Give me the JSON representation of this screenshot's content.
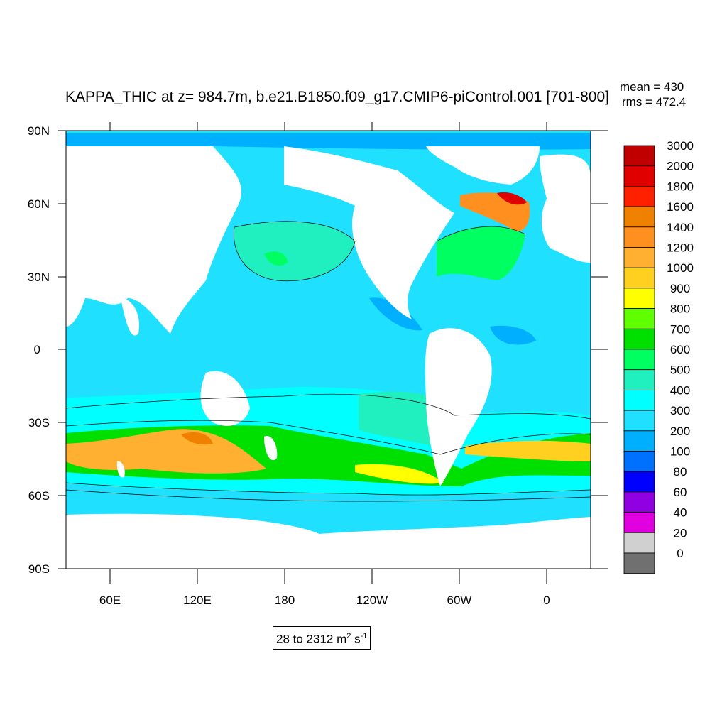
{
  "title": "KAPPA_THIC at z= 984.7m, b.e21.B1850.f09_g17.CMIP6-piControl.001 [701-800]",
  "stats": {
    "mean": "mean = 430",
    "rms": "rms = 472.4"
  },
  "range_label": {
    "text": "28 to 2312 m",
    "sup1": "2",
    "mid": " s",
    "sup2": "-1"
  },
  "lat_labels": [
    "90N",
    "60N",
    "30N",
    "0",
    "30S",
    "60S",
    "90S"
  ],
  "lon_labels": [
    "60E",
    "120E",
    "180",
    "120W",
    "60W",
    "0"
  ],
  "colorbar": {
    "levels": [
      "3000",
      "2000",
      "1800",
      "1600",
      "1400",
      "1200",
      "1000",
      "900",
      "800",
      "700",
      "600",
      "500",
      "400",
      "300",
      "200",
      "100",
      "80",
      "60",
      "40",
      "20",
      "0"
    ],
    "colors": [
      "#c00000",
      "#e00000",
      "#ff2000",
      "#f08000",
      "#ff9020",
      "#ffb030",
      "#ffd020",
      "#ffff00",
      "#60ff00",
      "#00e000",
      "#00ff60",
      "#20f0c0",
      "#00ffff",
      "#20e0ff",
      "#00b0ff",
      "#0070ff",
      "#0000ff",
      "#9000e0",
      "#e000e0",
      "#d0d0d0",
      "#707070"
    ]
  },
  "chart_data": {
    "type": "map",
    "variable": "KAPPA_THIC",
    "units": "m^2 s^-1",
    "depth_m": 984.7,
    "case": "b.e21.B1850.f09_g17.CMIP6-piControl.001",
    "years": "701-800",
    "mean": 430,
    "rms": 472.4,
    "min": 28,
    "max": 2312,
    "lon_range": [
      20,
      380
    ],
    "lat_range": [
      -90,
      90
    ],
    "contour_levels": [
      0,
      20,
      40,
      60,
      80,
      100,
      200,
      300,
      400,
      500,
      600,
      700,
      800,
      900,
      1000,
      1200,
      1400,
      1600,
      1800,
      2000,
      3000
    ],
    "regions": [
      {
        "name": "southern-band-outer",
        "value": 450
      },
      {
        "name": "southern-band",
        "value": 650
      },
      {
        "name": "southern-band-core",
        "value": 1100
      },
      {
        "name": "south-pacific-gyre",
        "value": 520
      },
      {
        "name": "gulf-stream",
        "value": 800
      },
      {
        "name": "north-atlantic-subpolar",
        "value": 1700
      },
      {
        "name": "north-pacific-center",
        "value": 520
      },
      {
        "name": "equatorial-atlantic",
        "value": 250
      }
    ]
  }
}
